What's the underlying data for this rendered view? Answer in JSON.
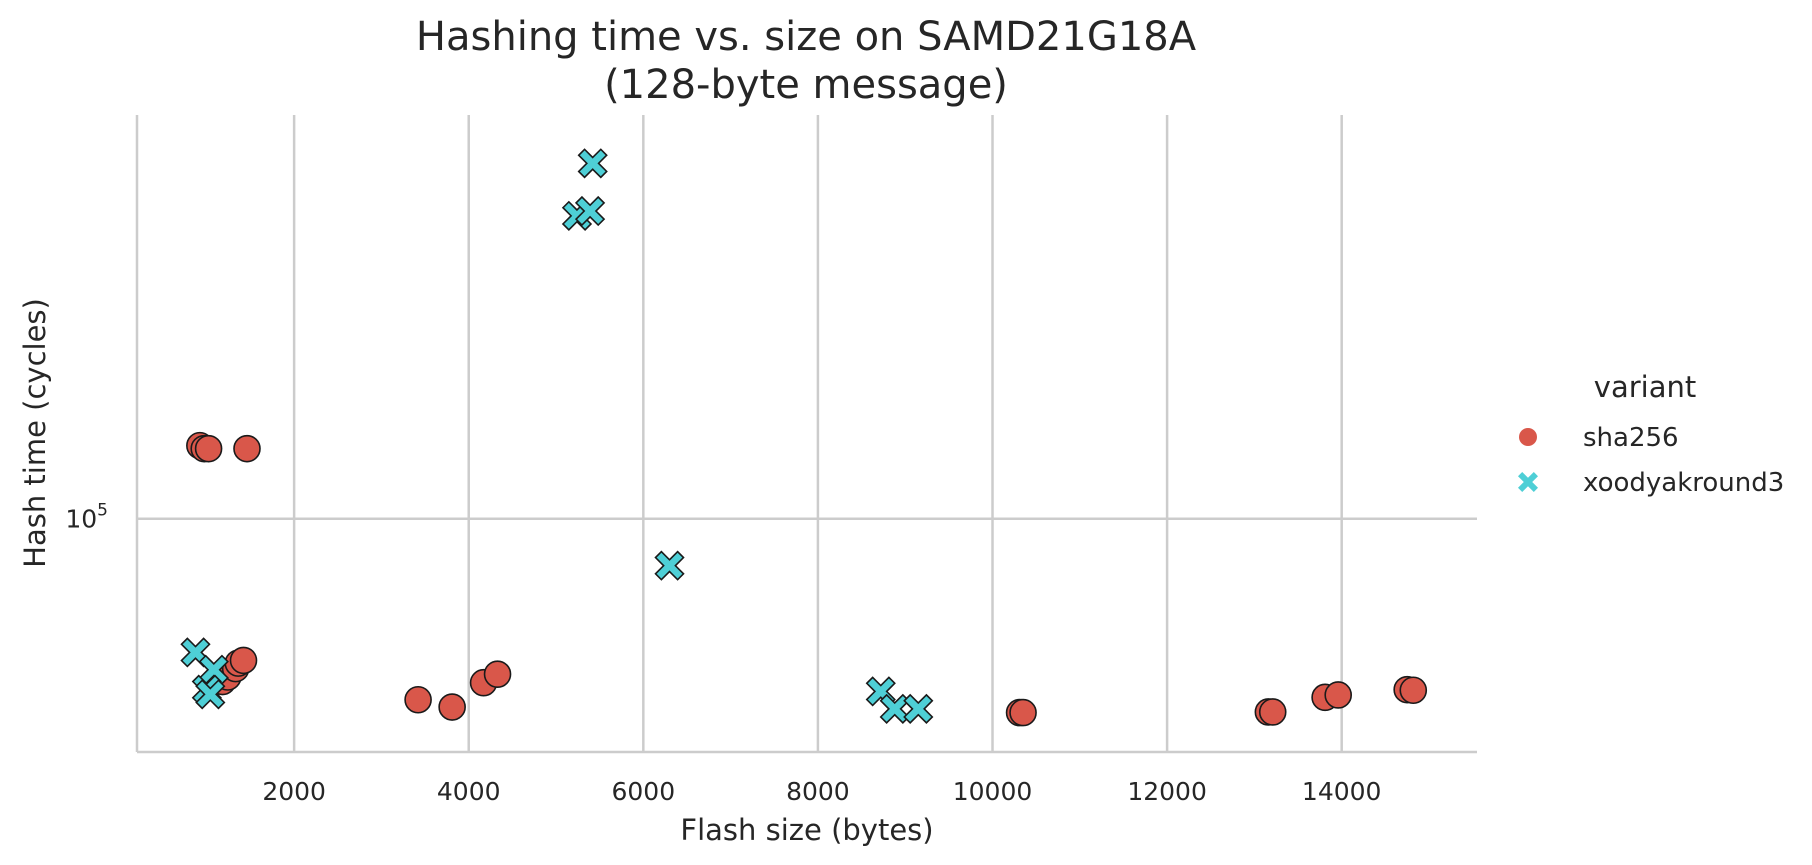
{
  "chart_data": {
    "type": "scatter",
    "title": "Hashing time vs. size on SAMD21G18A",
    "subtitle": "(128-byte message)",
    "xlabel": "Flash size (bytes)",
    "ylabel": "Hash time (cycles)",
    "xlim": [
      200,
      15550
    ],
    "ylim": [
      53000,
      300000
    ],
    "yscale": "log",
    "xticks": [
      2000,
      4000,
      6000,
      8000,
      10000,
      12000,
      14000
    ],
    "xtick_labels": [
      "2000",
      "4000",
      "6000",
      "8000",
      "10000",
      "12000",
      "14000"
    ],
    "ytick_values": [
      100000
    ],
    "ytick_label": {
      "base": "10",
      "exp": "5"
    },
    "grid": true,
    "legend": {
      "title": "variant",
      "position": "right"
    },
    "series": [
      {
        "name": "sha256",
        "color": "#d9574a",
        "marker": "circle",
        "points": [
          {
            "x": 920,
            "y": 122000
          },
          {
            "x": 970,
            "y": 121000
          },
          {
            "x": 1020,
            "y": 121000
          },
          {
            "x": 1460,
            "y": 121000
          },
          {
            "x": 1180,
            "y": 64200
          },
          {
            "x": 1240,
            "y": 65000
          },
          {
            "x": 1330,
            "y": 66500
          },
          {
            "x": 1360,
            "y": 67500
          },
          {
            "x": 1420,
            "y": 68000
          },
          {
            "x": 3420,
            "y": 61100
          },
          {
            "x": 3810,
            "y": 59900
          },
          {
            "x": 4170,
            "y": 64000
          },
          {
            "x": 4330,
            "y": 65500
          },
          {
            "x": 10310,
            "y": 59000
          },
          {
            "x": 10350,
            "y": 59000
          },
          {
            "x": 13160,
            "y": 59100
          },
          {
            "x": 13210,
            "y": 59100
          },
          {
            "x": 13810,
            "y": 61500
          },
          {
            "x": 13960,
            "y": 61900
          },
          {
            "x": 14750,
            "y": 62800
          },
          {
            "x": 14820,
            "y": 62700
          }
        ]
      },
      {
        "name": "xoodyakround3",
        "color": "#4ecfd6",
        "marker": "x",
        "points": [
          {
            "x": 5420,
            "y": 263000
          },
          {
            "x": 5240,
            "y": 228000
          },
          {
            "x": 5390,
            "y": 231000
          },
          {
            "x": 6300,
            "y": 88000
          },
          {
            "x": 870,
            "y": 69500
          },
          {
            "x": 1080,
            "y": 66300
          },
          {
            "x": 1000,
            "y": 62800
          },
          {
            "x": 1040,
            "y": 62000
          },
          {
            "x": 8720,
            "y": 62500
          },
          {
            "x": 8880,
            "y": 59600
          },
          {
            "x": 9150,
            "y": 59600
          }
        ]
      }
    ]
  }
}
